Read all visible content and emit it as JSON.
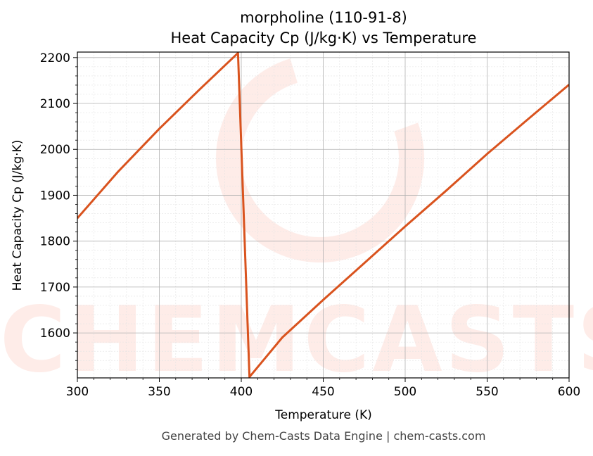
{
  "chart_data": {
    "type": "line",
    "title_line1": "morpholine (110-91-8)",
    "title_line2": "Heat Capacity Cp (J/kg·K) vs Temperature",
    "xlabel": "Temperature (K)",
    "ylabel": "Heat Capacity Cp (J/kg·K)",
    "xlim": [
      300,
      600
    ],
    "ylim": [
      1502,
      2212
    ],
    "xticks": [
      300,
      350,
      400,
      450,
      500,
      550,
      600
    ],
    "yticks": [
      1600,
      1700,
      1800,
      1900,
      2000,
      2100,
      2200
    ],
    "grid": true,
    "legend": "none",
    "watermark": "CHEMCASTS",
    "series": [
      {
        "color": "#d9531e",
        "x": [
          300,
          325,
          350,
          375,
          398,
          405,
          425,
          450,
          475,
          500,
          525,
          550,
          575,
          600
        ],
        "y": [
          1850,
          1952,
          2045,
          2132,
          2210,
          1504,
          1590,
          1672,
          1752,
          1832,
          1910,
          1990,
          2066,
          2141
        ]
      }
    ]
  },
  "footer": "Generated by Chem-Casts Data Engine | chem-casts.com"
}
